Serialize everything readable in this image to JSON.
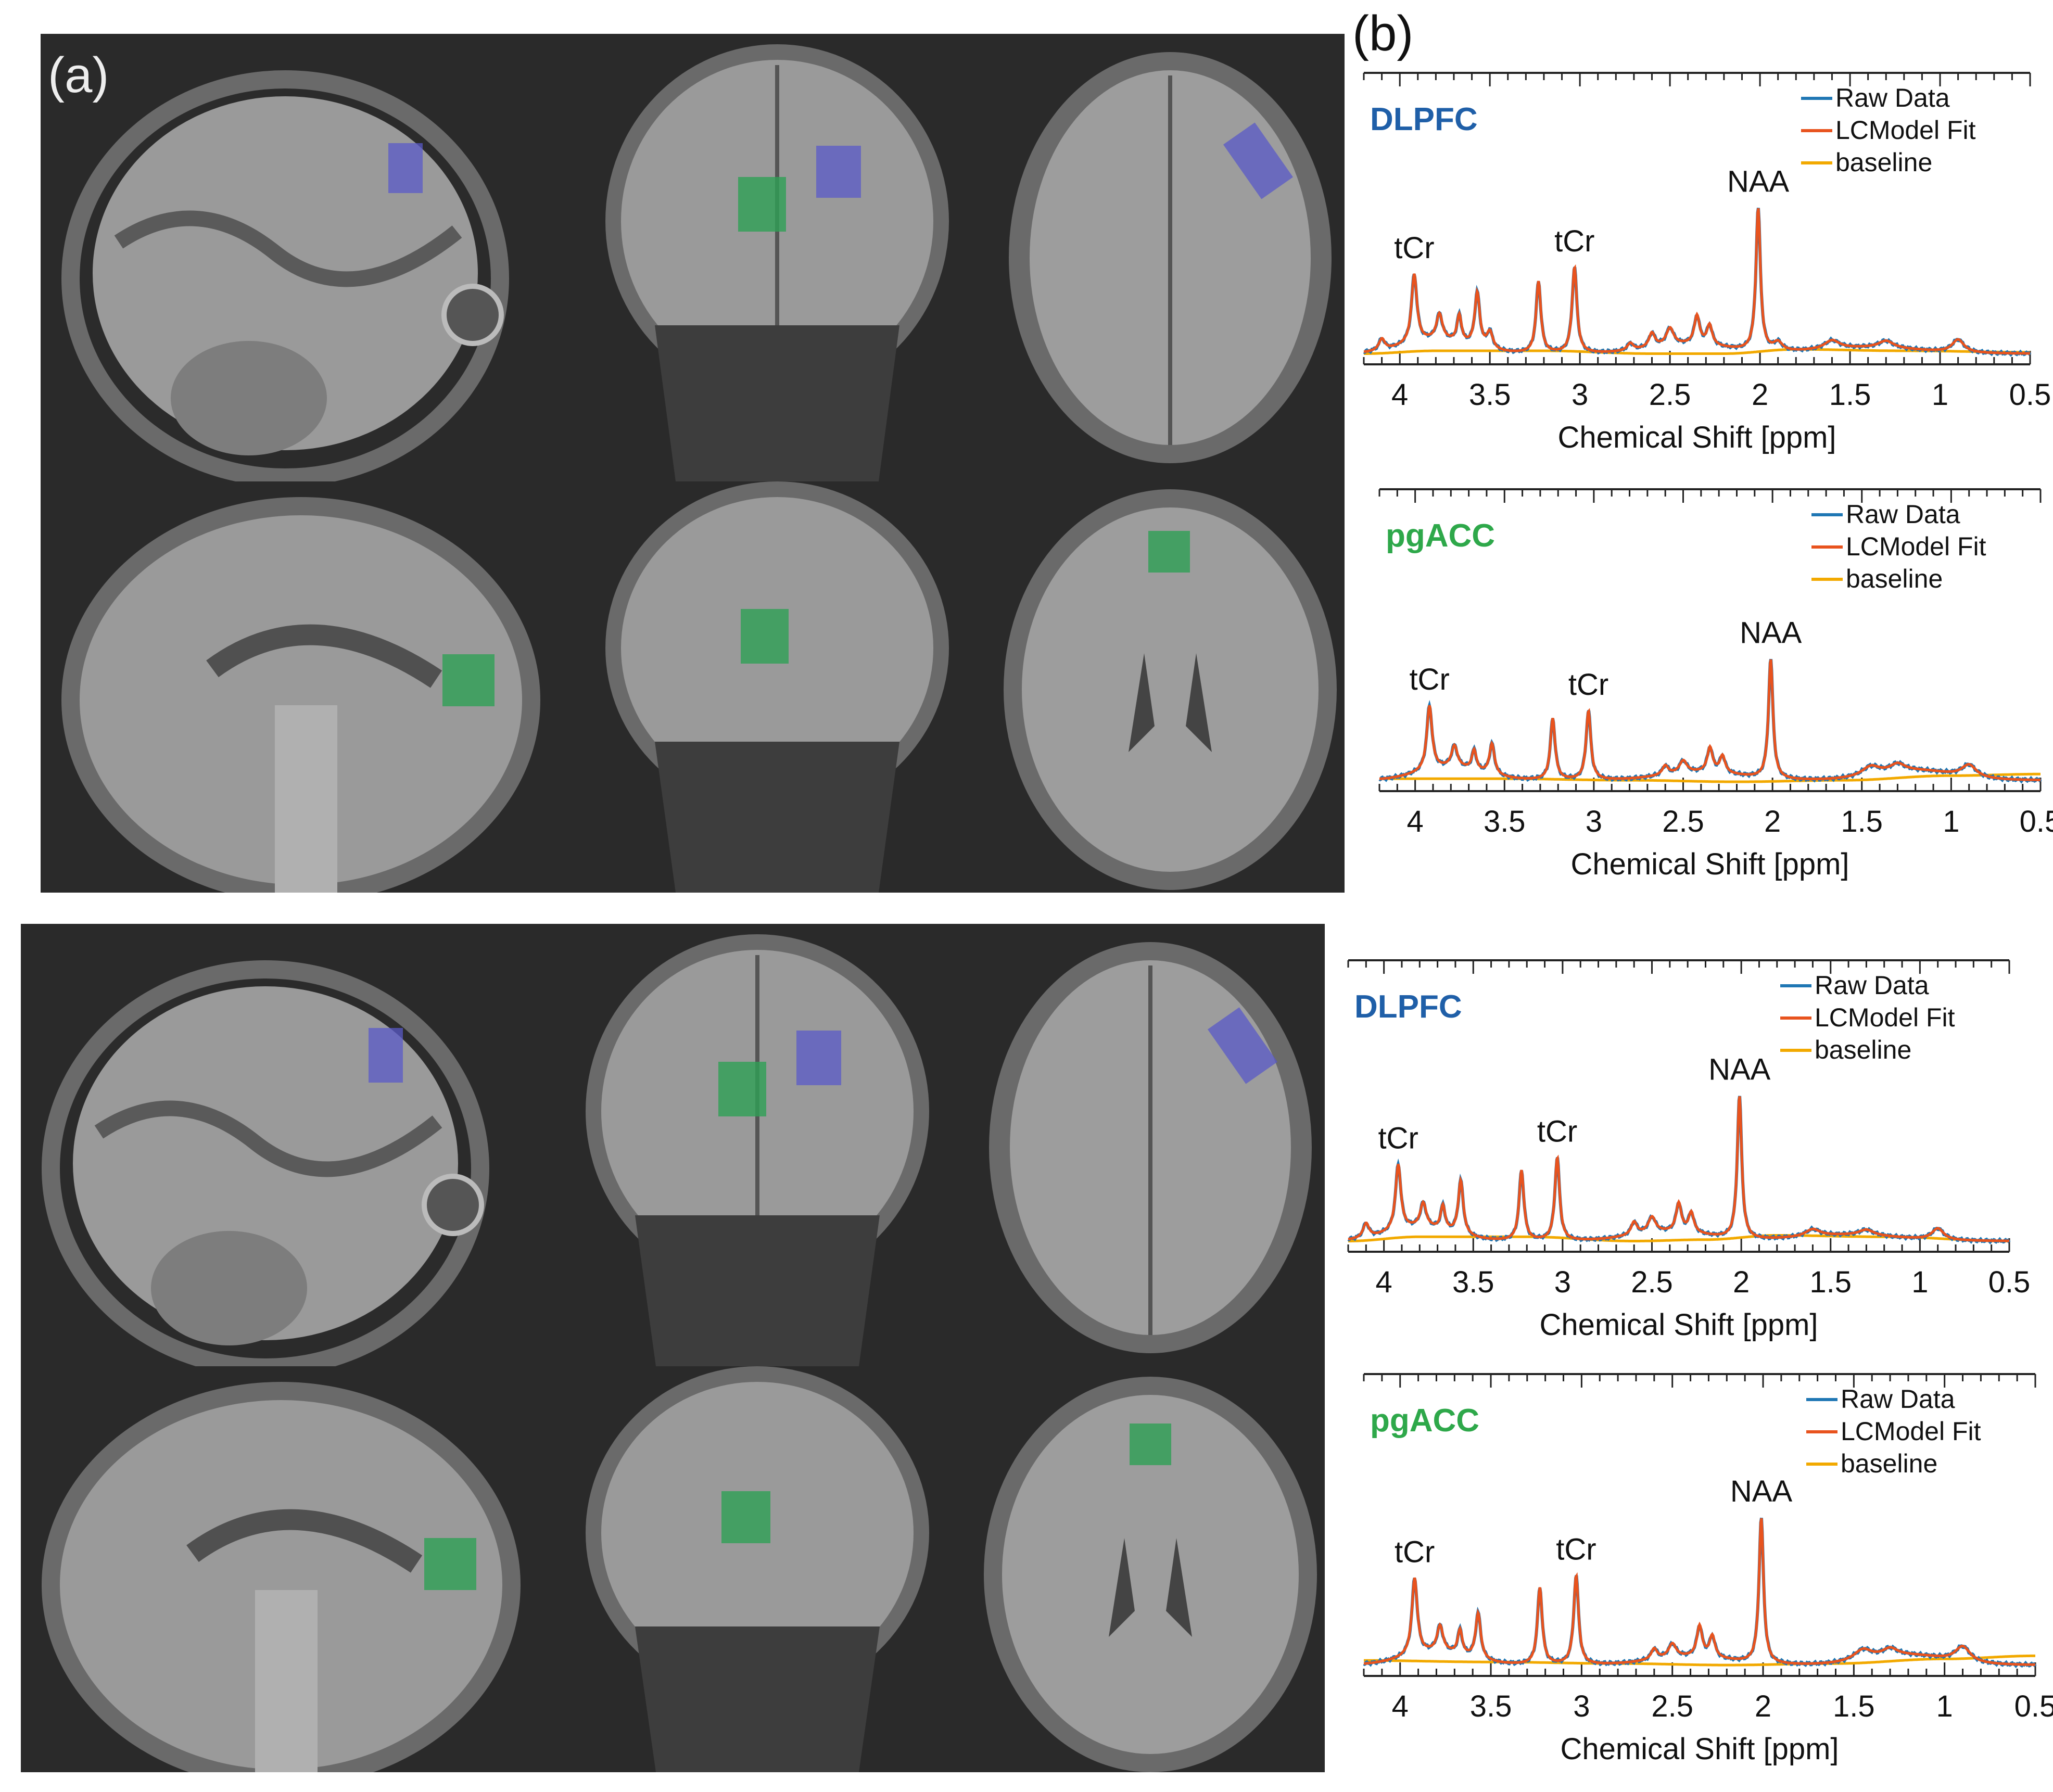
{
  "figure": {
    "panel_a_label": "(a)",
    "panel_b_label": "(b)"
  },
  "mri": {
    "views": [
      "sagittal",
      "coronal",
      "axial"
    ],
    "voi_colors": {
      "DLPFC": "#5a5ac8",
      "pgACC": "#2ea055"
    }
  },
  "legend": {
    "raw": "Raw Data",
    "fit": "LCModel Fit",
    "baseline": "baseline"
  },
  "colors": {
    "raw": "#1f77b4",
    "fit": "#e8531e",
    "baseline": "#f2a900",
    "dlpfc_label": "#1f5fa8",
    "pgacc_label": "#2ea84a"
  },
  "chart_data": [
    {
      "type": "line",
      "region": "DLPFC",
      "title": "DLPFC",
      "xlabel": "Chemical Shift [ppm]",
      "ylabel": "",
      "xlim": [
        4.2,
        0.5
      ],
      "x_ticks": [
        "4",
        "3.5",
        "3",
        "2.5",
        "2",
        "1.5",
        "1",
        "0.5"
      ],
      "peak_labels": [
        {
          "text": "tCr",
          "ppm": 3.92
        },
        {
          "text": "tCr",
          "ppm": 3.03
        },
        {
          "text": "NAA",
          "ppm": 2.01
        }
      ],
      "series": [
        {
          "name": "Raw Data",
          "peaks": [
            [
              4.1,
              0.08,
              0.02
            ],
            [
              3.92,
              0.48,
              0.018
            ],
            [
              3.78,
              0.18,
              0.02
            ],
            [
              3.67,
              0.19,
              0.015
            ],
            [
              3.57,
              0.38,
              0.017
            ],
            [
              3.5,
              0.12,
              0.02
            ],
            [
              3.23,
              0.5,
              0.016
            ],
            [
              3.03,
              0.6,
              0.016
            ],
            [
              2.72,
              0.05,
              0.02
            ],
            [
              2.6,
              0.1,
              0.02
            ],
            [
              2.5,
              0.12,
              0.025
            ],
            [
              2.35,
              0.2,
              0.018
            ],
            [
              2.28,
              0.14,
              0.018
            ],
            [
              2.01,
              1.0,
              0.015
            ],
            [
              1.9,
              0.06,
              0.03
            ],
            [
              1.6,
              0.06,
              0.05
            ],
            [
              1.3,
              0.05,
              0.05
            ],
            [
              0.9,
              0.09,
              0.04
            ]
          ],
          "broad": [
            [
              3.8,
              0.09,
              0.25
            ],
            [
              2.4,
              0.06,
              0.3
            ],
            [
              1.4,
              0.04,
              0.4
            ]
          ]
        },
        {
          "name": "LCModel Fit",
          "peaks": [
            [
              4.1,
              0.08,
              0.02
            ],
            [
              3.92,
              0.48,
              0.018
            ],
            [
              3.78,
              0.18,
              0.02
            ],
            [
              3.67,
              0.19,
              0.015
            ],
            [
              3.57,
              0.38,
              0.017
            ],
            [
              3.5,
              0.12,
              0.02
            ],
            [
              3.23,
              0.5,
              0.016
            ],
            [
              3.03,
              0.6,
              0.016
            ],
            [
              2.72,
              0.05,
              0.02
            ],
            [
              2.6,
              0.1,
              0.02
            ],
            [
              2.5,
              0.12,
              0.025
            ],
            [
              2.35,
              0.2,
              0.018
            ],
            [
              2.28,
              0.14,
              0.018
            ],
            [
              2.01,
              1.0,
              0.015
            ],
            [
              1.9,
              0.06,
              0.03
            ],
            [
              1.6,
              0.06,
              0.05
            ],
            [
              1.3,
              0.05,
              0.05
            ],
            [
              0.9,
              0.09,
              0.04
            ]
          ],
          "broad": [
            [
              3.8,
              0.09,
              0.25
            ],
            [
              2.4,
              0.06,
              0.3
            ],
            [
              1.4,
              0.04,
              0.4
            ]
          ]
        },
        {
          "name": "baseline",
          "points": [
            [
              4.2,
              0.02
            ],
            [
              3.8,
              0.04
            ],
            [
              3.2,
              0.04
            ],
            [
              2.6,
              0.02
            ],
            [
              2.2,
              0.02
            ],
            [
              1.8,
              0.05
            ],
            [
              1.2,
              0.04
            ],
            [
              0.5,
              0.03
            ]
          ]
        }
      ]
    },
    {
      "type": "line",
      "region": "pgACC",
      "title": "pgACC",
      "xlabel": "Chemical Shift [ppm]",
      "ylabel": "",
      "xlim": [
        4.2,
        0.5
      ],
      "x_ticks": [
        "4",
        "3.5",
        "3",
        "2.5",
        "2",
        "1.5",
        "1",
        "0.5"
      ],
      "peak_labels": [
        {
          "text": "tCr",
          "ppm": 3.92
        },
        {
          "text": "tCr",
          "ppm": 3.03
        },
        {
          "text": "NAA",
          "ppm": 2.01
        }
      ],
      "series": [
        {
          "name": "Raw Data",
          "peaks": [
            [
              3.92,
              0.42,
              0.018
            ],
            [
              3.78,
              0.14,
              0.02
            ],
            [
              3.67,
              0.13,
              0.015
            ],
            [
              3.57,
              0.2,
              0.017
            ],
            [
              3.23,
              0.4,
              0.016
            ],
            [
              3.03,
              0.45,
              0.016
            ],
            [
              2.6,
              0.06,
              0.02
            ],
            [
              2.5,
              0.08,
              0.025
            ],
            [
              2.35,
              0.16,
              0.018
            ],
            [
              2.28,
              0.11,
              0.018
            ],
            [
              2.01,
              0.78,
              0.015
            ],
            [
              1.45,
              0.06,
              0.06
            ],
            [
              1.3,
              0.05,
              0.05
            ],
            [
              0.9,
              0.08,
              0.05
            ]
          ],
          "broad": [
            [
              3.8,
              0.08,
              0.25
            ],
            [
              2.4,
              0.05,
              0.3
            ],
            [
              1.2,
              0.06,
              0.3
            ]
          ]
        },
        {
          "name": "LCModel Fit",
          "peaks": [
            [
              3.92,
              0.42,
              0.018
            ],
            [
              3.78,
              0.14,
              0.02
            ],
            [
              3.67,
              0.13,
              0.015
            ],
            [
              3.57,
              0.2,
              0.017
            ],
            [
              3.23,
              0.4,
              0.016
            ],
            [
              3.03,
              0.45,
              0.016
            ],
            [
              2.6,
              0.06,
              0.02
            ],
            [
              2.5,
              0.08,
              0.025
            ],
            [
              2.35,
              0.16,
              0.018
            ],
            [
              2.28,
              0.11,
              0.018
            ],
            [
              2.01,
              0.78,
              0.015
            ],
            [
              1.45,
              0.06,
              0.06
            ],
            [
              1.3,
              0.05,
              0.05
            ],
            [
              0.9,
              0.08,
              0.05
            ]
          ],
          "broad": [
            [
              3.8,
              0.08,
              0.25
            ],
            [
              2.4,
              0.05,
              0.3
            ],
            [
              1.2,
              0.06,
              0.3
            ]
          ]
        },
        {
          "name": "baseline",
          "points": [
            [
              4.2,
              0.03
            ],
            [
              3.5,
              0.03
            ],
            [
              2.8,
              0.02
            ],
            [
              2.2,
              0.01
            ],
            [
              1.6,
              0.02
            ],
            [
              1.0,
              0.05
            ],
            [
              0.5,
              0.06
            ]
          ]
        }
      ]
    },
    {
      "type": "line",
      "region": "DLPFC",
      "title": "DLPFC",
      "xlabel": "Chemical Shift [ppm]",
      "ylabel": "",
      "xlim": [
        4.2,
        0.5
      ],
      "x_ticks": [
        "4",
        "3.5",
        "3",
        "2.5",
        "2",
        "1.5",
        "1",
        "0.5"
      ],
      "peak_labels": [
        {
          "text": "tCr",
          "ppm": 3.92
        },
        {
          "text": "tCr",
          "ppm": 3.03
        },
        {
          "text": "NAA",
          "ppm": 2.01
        }
      ],
      "series": [
        {
          "name": "Raw Data",
          "peaks": [
            [
              4.1,
              0.1,
              0.02
            ],
            [
              3.92,
              0.46,
              0.018
            ],
            [
              3.78,
              0.17,
              0.02
            ],
            [
              3.67,
              0.17,
              0.015
            ],
            [
              3.57,
              0.38,
              0.017
            ],
            [
              3.23,
              0.49,
              0.016
            ],
            [
              3.03,
              0.58,
              0.016
            ],
            [
              2.6,
              0.09,
              0.02
            ],
            [
              2.5,
              0.11,
              0.025
            ],
            [
              2.35,
              0.2,
              0.018
            ],
            [
              2.28,
              0.14,
              0.018
            ],
            [
              2.01,
              1.0,
              0.015
            ],
            [
              1.6,
              0.05,
              0.05
            ],
            [
              1.3,
              0.04,
              0.05
            ],
            [
              0.9,
              0.08,
              0.04
            ]
          ],
          "broad": [
            [
              3.8,
              0.09,
              0.25
            ],
            [
              2.4,
              0.06,
              0.3
            ],
            [
              1.4,
              0.04,
              0.4
            ]
          ]
        },
        {
          "name": "LCModel Fit",
          "peaks": [
            [
              4.1,
              0.1,
              0.02
            ],
            [
              3.92,
              0.46,
              0.018
            ],
            [
              3.78,
              0.17,
              0.02
            ],
            [
              3.67,
              0.17,
              0.015
            ],
            [
              3.57,
              0.38,
              0.017
            ],
            [
              3.23,
              0.49,
              0.016
            ],
            [
              3.03,
              0.58,
              0.016
            ],
            [
              2.6,
              0.09,
              0.02
            ],
            [
              2.5,
              0.11,
              0.025
            ],
            [
              2.35,
              0.2,
              0.018
            ],
            [
              2.28,
              0.14,
              0.018
            ],
            [
              2.01,
              1.0,
              0.015
            ],
            [
              1.6,
              0.05,
              0.05
            ],
            [
              1.3,
              0.04,
              0.05
            ],
            [
              0.9,
              0.08,
              0.04
            ]
          ],
          "broad": [
            [
              3.8,
              0.09,
              0.25
            ],
            [
              2.4,
              0.06,
              0.3
            ],
            [
              1.4,
              0.04,
              0.4
            ]
          ]
        },
        {
          "name": "baseline",
          "points": [
            [
              4.2,
              0.02
            ],
            [
              3.8,
              0.05
            ],
            [
              3.2,
              0.05
            ],
            [
              2.6,
              0.02
            ],
            [
              2.2,
              0.03
            ],
            [
              1.8,
              0.06
            ],
            [
              1.2,
              0.05
            ],
            [
              0.5,
              0.02
            ]
          ]
        }
      ]
    },
    {
      "type": "line",
      "region": "pgACC",
      "title": "pgACC",
      "xlabel": "Chemical Shift [ppm]",
      "ylabel": "",
      "xlim": [
        4.2,
        0.5
      ],
      "x_ticks": [
        "4",
        "3.5",
        "3",
        "2.5",
        "2",
        "1.5",
        "1",
        "0.5"
      ],
      "peak_labels": [
        {
          "text": "tCr",
          "ppm": 3.92
        },
        {
          "text": "tCr",
          "ppm": 3.03
        },
        {
          "text": "NAA",
          "ppm": 2.01
        }
      ],
      "series": [
        {
          "name": "Raw Data",
          "peaks": [
            [
              3.92,
              0.5,
              0.018
            ],
            [
              3.78,
              0.17,
              0.02
            ],
            [
              3.67,
              0.16,
              0.015
            ],
            [
              3.57,
              0.3,
              0.017
            ],
            [
              3.23,
              0.5,
              0.016
            ],
            [
              3.03,
              0.58,
              0.016
            ],
            [
              2.6,
              0.07,
              0.02
            ],
            [
              2.5,
              0.09,
              0.025
            ],
            [
              2.35,
              0.2,
              0.018
            ],
            [
              2.28,
              0.14,
              0.018
            ],
            [
              2.01,
              0.95,
              0.015
            ],
            [
              1.45,
              0.07,
              0.06
            ],
            [
              1.3,
              0.05,
              0.05
            ],
            [
              0.9,
              0.1,
              0.05
            ]
          ],
          "broad": [
            [
              3.8,
              0.08,
              0.25
            ],
            [
              2.4,
              0.05,
              0.3
            ],
            [
              1.2,
              0.06,
              0.3
            ]
          ]
        },
        {
          "name": "LCModel Fit",
          "peaks": [
            [
              3.92,
              0.5,
              0.018
            ],
            [
              3.78,
              0.17,
              0.02
            ],
            [
              3.67,
              0.16,
              0.015
            ],
            [
              3.57,
              0.3,
              0.017
            ],
            [
              3.23,
              0.5,
              0.016
            ],
            [
              3.03,
              0.58,
              0.016
            ],
            [
              2.6,
              0.07,
              0.02
            ],
            [
              2.5,
              0.09,
              0.025
            ],
            [
              2.35,
              0.2,
              0.018
            ],
            [
              2.28,
              0.14,
              0.018
            ],
            [
              2.01,
              0.95,
              0.015
            ],
            [
              1.45,
              0.07,
              0.06
            ],
            [
              1.3,
              0.05,
              0.05
            ],
            [
              0.9,
              0.1,
              0.05
            ]
          ],
          "broad": [
            [
              3.8,
              0.08,
              0.25
            ],
            [
              2.4,
              0.05,
              0.3
            ],
            [
              1.2,
              0.06,
              0.3
            ]
          ]
        },
        {
          "name": "baseline",
          "points": [
            [
              4.2,
              0.05
            ],
            [
              3.5,
              0.04
            ],
            [
              2.8,
              0.03
            ],
            [
              2.2,
              0.02
            ],
            [
              1.6,
              0.03
            ],
            [
              1.0,
              0.06
            ],
            [
              0.5,
              0.08
            ]
          ]
        }
      ]
    }
  ]
}
